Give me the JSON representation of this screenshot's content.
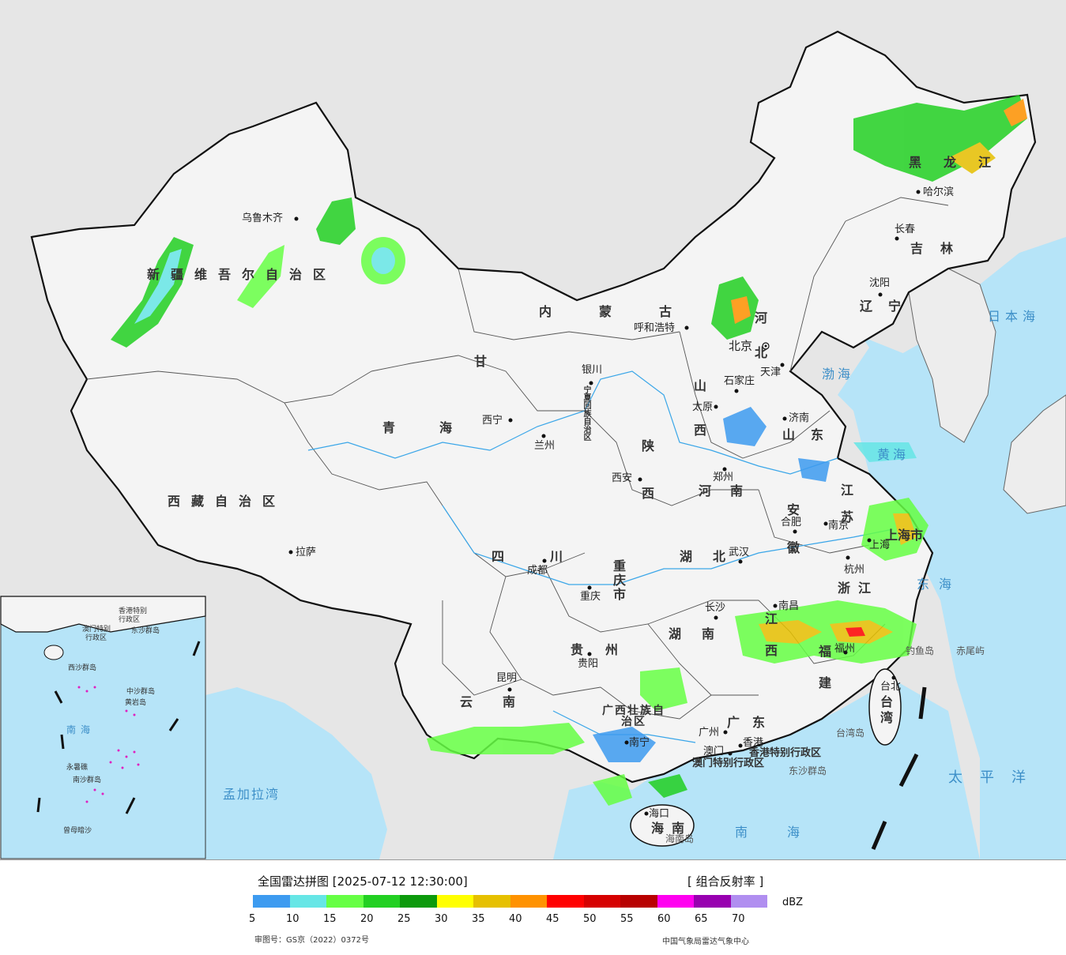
{
  "map": {
    "cities": [
      {
        "id": "urumqi",
        "name": "乌鲁木齐"
      },
      {
        "id": "lhasa",
        "name": "拉萨"
      },
      {
        "id": "xining",
        "name": "西宁"
      },
      {
        "id": "lanzhou",
        "name": "兰州"
      },
      {
        "id": "yinchuan",
        "name": "银川"
      },
      {
        "id": "hohhot",
        "name": "呼和浩特"
      },
      {
        "id": "beijing",
        "name": "北京"
      },
      {
        "id": "tianjin",
        "name": "天津"
      },
      {
        "id": "shijiazhuang",
        "name": "石家庄"
      },
      {
        "id": "taiyuan",
        "name": "太原"
      },
      {
        "id": "jinan",
        "name": "济南"
      },
      {
        "id": "zhengzhou",
        "name": "郑州"
      },
      {
        "id": "xian",
        "name": "西安"
      },
      {
        "id": "chengdu",
        "name": "成都"
      },
      {
        "id": "chongqing",
        "name": "重庆"
      },
      {
        "id": "wuhan",
        "name": "武汉"
      },
      {
        "id": "hefei",
        "name": "合肥"
      },
      {
        "id": "nanjing",
        "name": "南京"
      },
      {
        "id": "shanghai",
        "name": "上海"
      },
      {
        "id": "hangzhou",
        "name": "杭州"
      },
      {
        "id": "nanchang",
        "name": "南昌"
      },
      {
        "id": "changsha",
        "name": "长沙"
      },
      {
        "id": "guiyang",
        "name": "贵阳"
      },
      {
        "id": "kunming",
        "name": "昆明"
      },
      {
        "id": "nanning",
        "name": "南宁"
      },
      {
        "id": "guangzhou",
        "name": "广州"
      },
      {
        "id": "hongkong",
        "name": "香港"
      },
      {
        "id": "macau",
        "name": "澳门"
      },
      {
        "id": "fuzhou",
        "name": "福州"
      },
      {
        "id": "taibei",
        "name": "台北"
      },
      {
        "id": "haikou",
        "name": "海口"
      },
      {
        "id": "shenyang",
        "name": "沈阳"
      },
      {
        "id": "changchun",
        "name": "长春"
      },
      {
        "id": "harbin",
        "name": "哈尔滨"
      }
    ],
    "provinces": [
      {
        "id": "xinjiang",
        "name": "新疆维吾尔自治区"
      },
      {
        "id": "xizang",
        "name": "西藏自治区"
      },
      {
        "id": "qinghai",
        "name": "青海"
      },
      {
        "id": "gansu",
        "name": "甘"
      },
      {
        "id": "neimenggu",
        "name": "内蒙古"
      },
      {
        "id": "heilongjiang",
        "name": "黑龙江"
      },
      {
        "id": "jilin",
        "name": "吉林"
      },
      {
        "id": "liaoning",
        "name": "辽宁"
      },
      {
        "id": "hebei",
        "name": "河北"
      },
      {
        "id": "shanxi",
        "name": "山西"
      },
      {
        "id": "shandong",
        "name": "山东"
      },
      {
        "id": "henan",
        "name": "河南"
      },
      {
        "id": "shaanxi",
        "name": "陕西"
      },
      {
        "id": "sichuan",
        "name": "四川"
      },
      {
        "id": "hubei",
        "name": "湖北"
      },
      {
        "id": "hunan",
        "name": "湖南"
      },
      {
        "id": "anhui",
        "name": "安徽"
      },
      {
        "id": "jiangsu",
        "name": "江苏"
      },
      {
        "id": "zhejiang",
        "name": "浙江"
      },
      {
        "id": "jiangxi",
        "name": "江西"
      },
      {
        "id": "fujian",
        "name": "福建"
      },
      {
        "id": "guangdong",
        "name": "广东"
      },
      {
        "id": "guangxi",
        "name": "广西壮族自治区"
      },
      {
        "id": "guizhou",
        "name": "贵州"
      },
      {
        "id": "yunnan",
        "name": "云南"
      },
      {
        "id": "hainan",
        "name": "海南"
      },
      {
        "id": "taiwan",
        "name": "台湾"
      },
      {
        "id": "chongqingshi",
        "name": "重庆市"
      },
      {
        "id": "shanghaishi",
        "name": "上海市"
      },
      {
        "id": "ningxia",
        "name": "宁夏回族自治区"
      },
      {
        "id": "hkSAR",
        "name": "香港特别行政区"
      },
      {
        "id": "macauSAR",
        "name": "澳门特别行政区"
      }
    ],
    "seas": [
      {
        "id": "bohai",
        "name": "渤海"
      },
      {
        "id": "huanghai",
        "name": "黄海"
      },
      {
        "id": "donghai",
        "name": "东海"
      },
      {
        "id": "nanhai",
        "name": "南海"
      },
      {
        "id": "taipingyang",
        "name": "太平洋"
      },
      {
        "id": "ribenhai",
        "name": "日本海"
      },
      {
        "id": "mengjialawan",
        "name": "孟加拉湾"
      }
    ],
    "islands": [
      {
        "id": "diaoyudao",
        "name": "钓鱼岛"
      },
      {
        "id": "chiweiyu",
        "name": "赤尾屿"
      },
      {
        "id": "taiwandao",
        "name": "台湾岛"
      },
      {
        "id": "dongsha",
        "name": "东沙群岛"
      },
      {
        "id": "hainandao",
        "name": "海南岛"
      }
    ],
    "inset_labels": [
      {
        "id": "i_hk",
        "name": "香港特别"
      },
      {
        "id": "i_hk2",
        "name": "行政区"
      },
      {
        "id": "i_mo",
        "name": "澳门特别"
      },
      {
        "id": "i_mo2",
        "name": "行政区"
      },
      {
        "id": "i_dongsha",
        "name": "东沙群岛"
      },
      {
        "id": "i_xisha",
        "name": "西沙群岛"
      },
      {
        "id": "i_zhongsha",
        "name": "中沙群岛"
      },
      {
        "id": "i_huangyan",
        "name": "黄岩岛"
      },
      {
        "id": "i_nansha",
        "name": "南沙群岛"
      },
      {
        "id": "i_nanhai",
        "name": "南海"
      },
      {
        "id": "i_zengmu",
        "name": "曾母暗沙"
      },
      {
        "id": "i_yongshu",
        "name": "永暑礁"
      }
    ]
  },
  "legend": {
    "title": "全国雷达拼图 [2025-07-12 12:30:00]",
    "product": "[ 组合反射率 ]",
    "unit": "dBZ",
    "colors": [
      "#3d9bf0",
      "#66e6e6",
      "#66ff44",
      "#22d022",
      "#0c9a0c",
      "#ffff00",
      "#e6c000",
      "#ff9200",
      "#ff0000",
      "#d60000",
      "#b80000",
      "#ff00f0",
      "#9800b0",
      "#b08ef0"
    ],
    "ticks": [
      "5",
      "10",
      "15",
      "20",
      "25",
      "30",
      "35",
      "40",
      "45",
      "50",
      "55",
      "60",
      "65",
      "70"
    ],
    "review_number": "审图号：GS京（2022）0372号",
    "organization": "中国气象局雷达气象中心"
  }
}
